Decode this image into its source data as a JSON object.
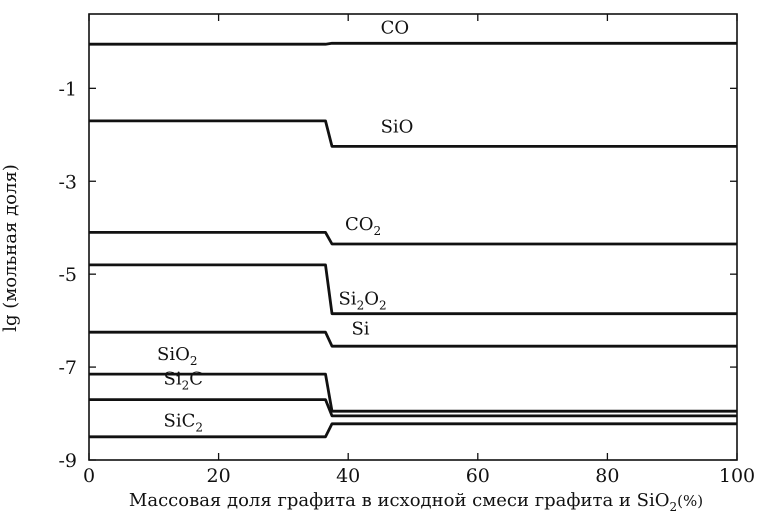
{
  "chart_data": {
    "type": "line",
    "xlabel": "Массовая доля графита в исходной смеси графита и SiO",
    "xlabel_sub": "2",
    "xlabel_suffix": "(%)",
    "ylabel": "lg (мольная доля)",
    "xlim": [
      0,
      100
    ],
    "ylim": [
      -9,
      0.6
    ],
    "xticks": [
      0,
      20,
      40,
      60,
      80,
      100
    ],
    "xtick_labels": [
      "0",
      "20",
      "40",
      "60",
      "80",
      "100"
    ],
    "yticks": [
      -1,
      -3,
      -5,
      -7,
      -9
    ],
    "ytick_labels": [
      "-1",
      "-3",
      "-5",
      "-7",
      "-9"
    ],
    "grid": false,
    "series": [
      {
        "name": "CO",
        "label_main": "CO",
        "label_sub": "",
        "label_x": 45,
        "label_y": 0.18,
        "x": [
          0,
          36.5,
          37.5,
          100
        ],
        "y": [
          -0.05,
          -0.05,
          -0.03,
          -0.03
        ]
      },
      {
        "name": "SiO",
        "label_main": "SiO",
        "label_sub": "",
        "label_x": 45,
        "label_y": -1.95,
        "x": [
          0,
          36.5,
          37.5,
          100
        ],
        "y": [
          -1.7,
          -1.7,
          -2.25,
          -2.25
        ]
      },
      {
        "name": "CO2",
        "label_main": "CO",
        "label_sub": "2",
        "label_x": 39.5,
        "label_y": -4.05,
        "x": [
          0,
          36.5,
          37.5,
          100
        ],
        "y": [
          -4.1,
          -4.1,
          -4.35,
          -4.35
        ]
      },
      {
        "name": "Si2O2",
        "label_main": "Si",
        "label_sub": "2",
        "label_main2": "O",
        "label_sub2": "2",
        "label_x": 38.5,
        "label_y": -5.65,
        "x": [
          0,
          36.5,
          37.5,
          100
        ],
        "y": [
          -4.8,
          -4.8,
          -5.85,
          -5.85
        ]
      },
      {
        "name": "Si",
        "label_main": "Si",
        "label_sub": "",
        "label_x": 40.5,
        "label_y": -6.3,
        "x": [
          0,
          36.5,
          37.5,
          100
        ],
        "y": [
          -6.25,
          -6.25,
          -6.55,
          -6.55
        ]
      },
      {
        "name": "SiO2",
        "label_main": "SiO",
        "label_sub": "2",
        "label_x": 10.5,
        "label_y": -6.85,
        "x": [
          0,
          36.5,
          37.5,
          100
        ],
        "y": [
          -7.15,
          -7.15,
          -7.95,
          -7.95
        ]
      },
      {
        "name": "Si2C",
        "label_main": "Si",
        "label_sub": "2",
        "label_main2": "C",
        "label_sub2": "",
        "label_x": 11.5,
        "label_y": -7.38,
        "x": [
          0,
          36.5,
          37.5,
          100
        ],
        "y": [
          -7.7,
          -7.7,
          -8.05,
          -8.05
        ]
      },
      {
        "name": "SiC2",
        "label_main": "SiC",
        "label_sub": "2",
        "label_x": 11.5,
        "label_y": -8.28,
        "x": [
          0,
          36.5,
          37.5,
          100
        ],
        "y": [
          -8.5,
          -8.5,
          -8.22,
          -8.22
        ]
      }
    ]
  }
}
